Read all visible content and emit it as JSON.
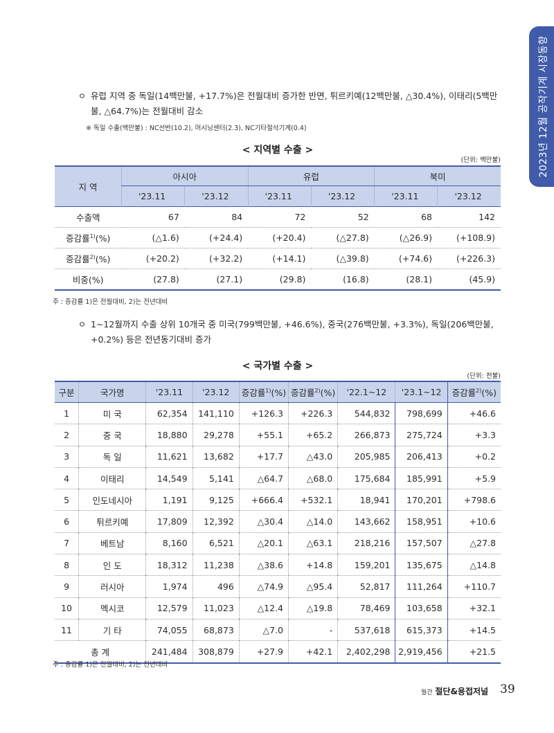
{
  "side_tab": "2023년 12월 공작기계 시장동향",
  "para1": {
    "bullet": "ㅇ",
    "text": "유럽 지역 중 독일(14백만불, +17.7%)은 전월대비 증가한 반면, 튀르키예(12백만불, △30.4%), 이태리(5백만불, △64.7%)는 전월대비 감소",
    "note": "※ 독일 수출(백만불) : NC선반(10.2), 머시닝센터(2.3), NC기타절삭기계(0.4)"
  },
  "table1": {
    "caption": "< 지역별 수출 >",
    "unit": "(단위: 백만불)",
    "region_header": "지 역",
    "regions": [
      "아시아",
      "유럽",
      "북미"
    ],
    "periods": [
      "'23.11",
      "'23.12",
      "'23.11",
      "'23.12",
      "'23.11",
      "'23.12"
    ],
    "rows": [
      {
        "label": "수출액",
        "values": [
          "67",
          "84",
          "72",
          "52",
          "68",
          "142"
        ]
      },
      {
        "label": "증감률",
        "sup": "1)",
        "suffix": "(%)",
        "values": [
          "(△1.6)",
          "(+24.4)",
          "(+20.4)",
          "(△27.8)",
          "(△26.9)",
          "(+108.9)"
        ]
      },
      {
        "label": "증감률",
        "sup": "2)",
        "suffix": "(%)",
        "values": [
          "(+20.2)",
          "(+32.2)",
          "(+14.1)",
          "(△39.8)",
          "(+74.6)",
          "(+226.3)"
        ]
      },
      {
        "label": "비중(%)",
        "values": [
          "(27.8)",
          "(27.1)",
          "(29.8)",
          "(16.8)",
          "(28.1)",
          "(45.9)"
        ]
      }
    ],
    "note": "주 : 증감률 1)은 전월대비, 2)는 전년대비"
  },
  "para2": {
    "bullet": "ㅇ",
    "text": "1~12월까지 수출 상위 10개국 중 미국(799백만불, +46.6%), 중국(276백만불, +3.3%), 독일(206백만불, +0.2%) 등은 전년동기대비 증가"
  },
  "table2": {
    "caption": "< 국가별 수출 >",
    "unit": "(단위: 천불)",
    "headers": [
      "구분",
      "국가명",
      "'23.11",
      "'23.12",
      "증감률",
      "증감률",
      "'22.1~12",
      "'23.1~12",
      "증감률"
    ],
    "header_sups": [
      "",
      "",
      "",
      "",
      "1)",
      "2)",
      "",
      "",
      "2)"
    ],
    "header_suffix": [
      "",
      "",
      "",
      "",
      "(%)",
      "(%)",
      "",
      "",
      "(%)"
    ],
    "rows": [
      [
        "1",
        "미 국",
        "62,354",
        "141,110",
        "+126.3",
        "+226.3",
        "544,832",
        "798,699",
        "+46.6"
      ],
      [
        "2",
        "중 국",
        "18,880",
        "29,278",
        "+55.1",
        "+65.2",
        "266,873",
        "275,724",
        "+3.3"
      ],
      [
        "3",
        "독 일",
        "11,621",
        "13,682",
        "+17.7",
        "△43.0",
        "205,985",
        "206,413",
        "+0.2"
      ],
      [
        "4",
        "이태리",
        "14,549",
        "5,141",
        "△64.7",
        "△68.0",
        "175,684",
        "185,991",
        "+5.9"
      ],
      [
        "5",
        "인도네시아",
        "1,191",
        "9,125",
        "+666.4",
        "+532.1",
        "18,941",
        "170,201",
        "+798.6"
      ],
      [
        "6",
        "튀르키예",
        "17,809",
        "12,392",
        "△30.4",
        "△14.0",
        "143,662",
        "158,951",
        "+10.6"
      ],
      [
        "7",
        "베트남",
        "8,160",
        "6,521",
        "△20.1",
        "△63.1",
        "218,216",
        "157,507",
        "△27.8"
      ],
      [
        "8",
        "인 도",
        "18,312",
        "11,238",
        "△38.6",
        "+14.8",
        "159,201",
        "135,675",
        "△14.8"
      ],
      [
        "9",
        "러시아",
        "1,974",
        "496",
        "△74.9",
        "△95.4",
        "52,817",
        "111,264",
        "+110.7"
      ],
      [
        "10",
        "멕시코",
        "12,579",
        "11,023",
        "△12.4",
        "△19.8",
        "78,469",
        "103,658",
        "+32.1"
      ],
      [
        "11",
        "기 타",
        "74,055",
        "68,873",
        "△7.0",
        "-",
        "537,618",
        "615,373",
        "+14.5"
      ]
    ],
    "total": [
      "총 계",
      "241,484",
      "308,879",
      "+27.9",
      "+42.1",
      "2,402,298",
      "2,919,456",
      "+21.5"
    ],
    "note": "주 : 증감률 1)은 전월대비, 2)는 전년대비"
  },
  "footer": {
    "prefix": "월간",
    "title": "절단&용접저널",
    "page": "39"
  }
}
